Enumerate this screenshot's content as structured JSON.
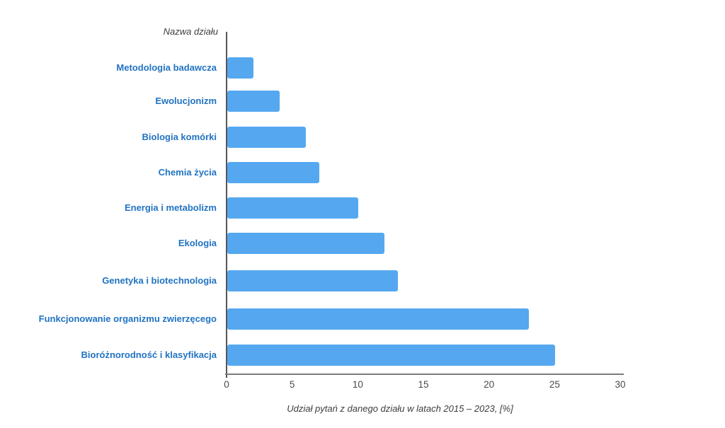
{
  "chart_data": {
    "type": "bar",
    "orientation": "horizontal",
    "title": "",
    "ylabel": "Nazwa działu",
    "xlabel": "Udział pytań z danego działu w latach 2015 – 2023, [%]",
    "categories": [
      "Metodologia badawcza",
      "Ewolucjonizm",
      "Biologia komórki",
      "Chemia życia",
      "Energia i metabolizm",
      "Ekologia",
      "Genetyka i biotechnologia",
      "Funkcjonowanie organizmu zwierzęcego",
      "Bioróżnorodność i klasyfikacja"
    ],
    "values": [
      2,
      4,
      6,
      7,
      10,
      12,
      13,
      23,
      25
    ],
    "xticks": [
      0,
      5,
      10,
      15,
      20,
      25,
      30
    ],
    "xlim": [
      0,
      30
    ],
    "grid": false,
    "legend": null,
    "colors": {
      "bar": "#55a8f0",
      "category_label": "#2173c2",
      "y_axis_line": "#565656",
      "x_axis_line": "#7a7a7a",
      "tick_label": "#4a4a4a",
      "axis_title": "#3d3d3d"
    }
  }
}
